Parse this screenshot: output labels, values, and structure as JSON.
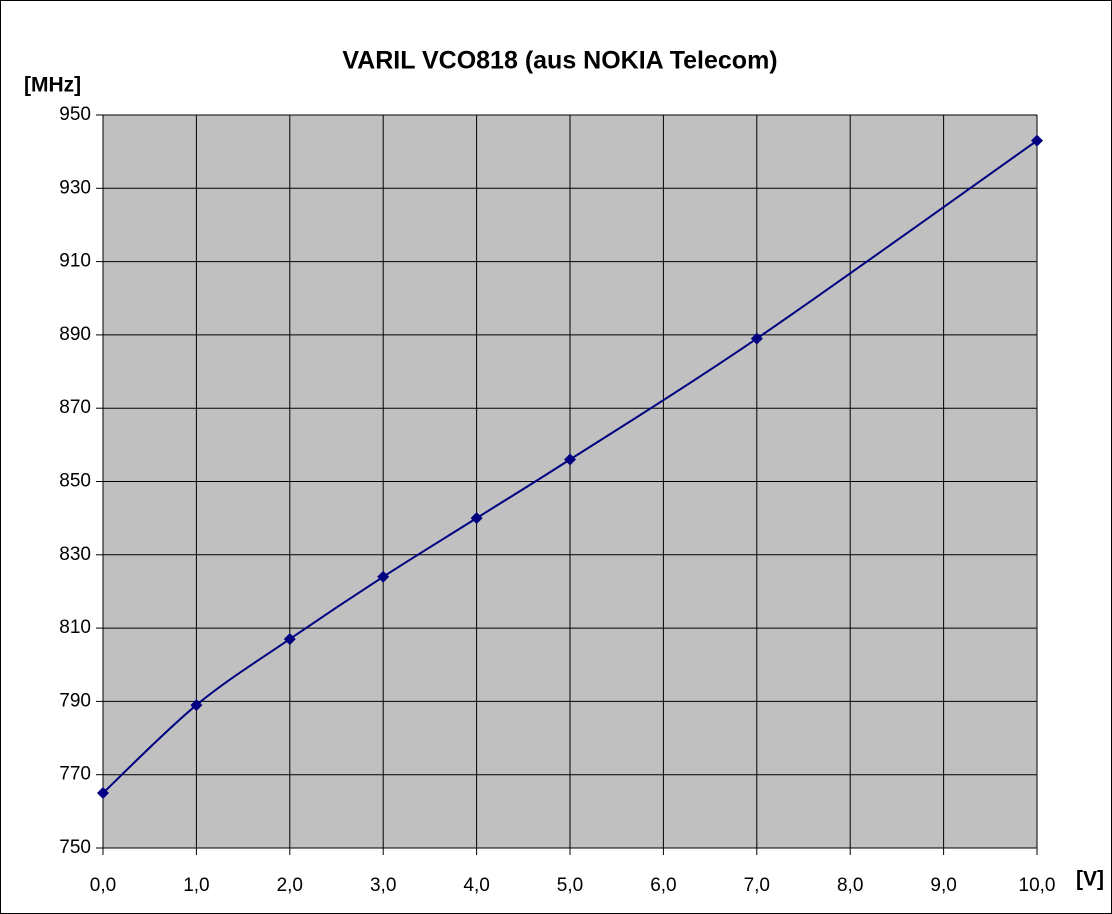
{
  "chart_data": {
    "type": "line",
    "title": "VARIL VCO818 (aus NOKIA Telecom)",
    "x_label": "[V]",
    "y_label": "[MHz]",
    "x": [
      0,
      1,
      2,
      3,
      4,
      5,
      7,
      10
    ],
    "series": [
      {
        "color": "#000080",
        "values": [
          765,
          789,
          807,
          824,
          840,
          856,
          889,
          943
        ]
      }
    ],
    "xlim": [
      0,
      10
    ],
    "xticks": [
      {
        "value": 0,
        "label": "0,0"
      },
      {
        "value": 1,
        "label": "1,0"
      },
      {
        "value": 2,
        "label": "2,0"
      },
      {
        "value": 3,
        "label": "3,0"
      },
      {
        "value": 4,
        "label": "4,0"
      },
      {
        "value": 5,
        "label": "5,0"
      },
      {
        "value": 6,
        "label": "6,0"
      },
      {
        "value": 7,
        "label": "7,0"
      },
      {
        "value": 8,
        "label": "8,0"
      },
      {
        "value": 9,
        "label": "9,0"
      },
      {
        "value": 10,
        "label": "10,0"
      }
    ],
    "ylim": [
      750,
      950
    ],
    "yticks": [
      750,
      770,
      790,
      810,
      830,
      850,
      870,
      890,
      910,
      930,
      950
    ],
    "grid": true,
    "smooth": true,
    "marker": "diamond",
    "plot_background": "#c0c0c0"
  }
}
